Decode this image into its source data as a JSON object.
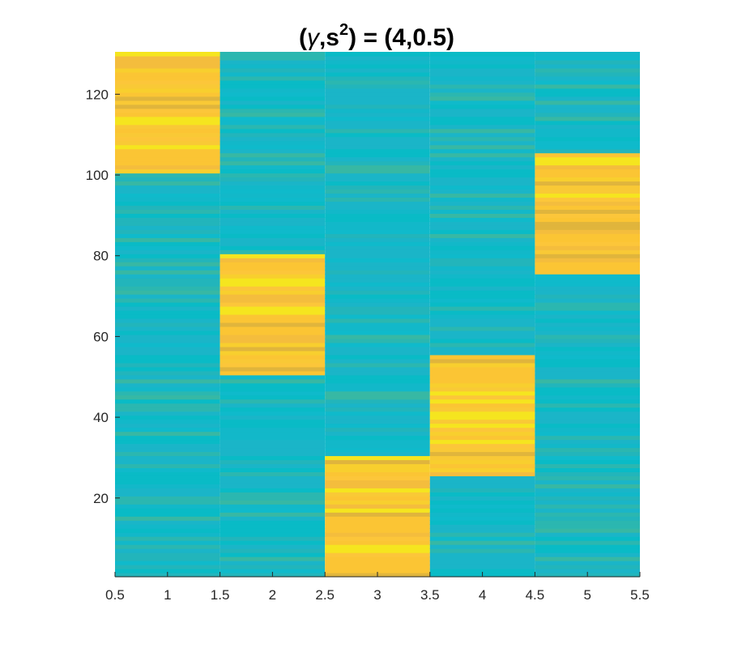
{
  "chart_data": {
    "type": "heatmap",
    "title_parts": {
      "open": "(",
      "gamma": "γ",
      "comma_s": ",s",
      "sup": "2",
      "close": ") = (4,0.5)"
    },
    "xlabel": "",
    "ylabel": "",
    "xlim": [
      0.5,
      5.5
    ],
    "ylim": [
      0.5,
      130.5
    ],
    "x_ticks": [
      "0.5",
      "1",
      "1.5",
      "2",
      "2.5",
      "3",
      "3.5",
      "4",
      "4.5",
      "5",
      "5.5"
    ],
    "y_ticks": [
      "20",
      "40",
      "60",
      "80",
      "100",
      "120"
    ],
    "columns": [
      1,
      2,
      3,
      4,
      5
    ],
    "rows": 130,
    "high_blocks": [
      {
        "column": 1,
        "row_start": 101,
        "row_end": 130
      },
      {
        "column": 2,
        "row_start": 51,
        "row_end": 80
      },
      {
        "column": 3,
        "row_start": 1,
        "row_end": 30
      },
      {
        "column": 4,
        "row_start": 26,
        "row_end": 55
      },
      {
        "column": 5,
        "row_start": 76,
        "row_end": 105
      }
    ],
    "colormap": "parula",
    "colors": {
      "low": "#1ab5c8",
      "low_alt": "#09bbc6",
      "mid": "#37b8a4",
      "high": "#fbc534",
      "high_bright": "#f5e51f",
      "high_dark": "#e0b53c"
    },
    "grid": false,
    "legend": "none"
  }
}
